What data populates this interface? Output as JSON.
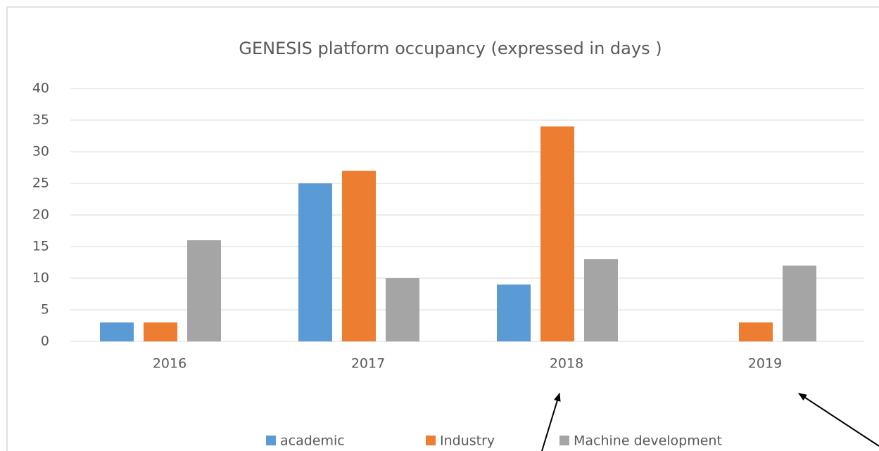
{
  "chart_data": {
    "type": "bar",
    "title": "GENESIS platform occupancy (expressed in days )",
    "categories": [
      "2016",
      "2017",
      "2018",
      "2019"
    ],
    "series": [
      {
        "name": "academic",
        "color": "#5b9bd5",
        "values": [
          3,
          25,
          9,
          0
        ]
      },
      {
        "name": "Industry",
        "color": "#ed7d31",
        "values": [
          3,
          27,
          34,
          3
        ]
      },
      {
        "name": "Machine development",
        "color": "#a5a5a5",
        "values": [
          16,
          10,
          13,
          12
        ]
      }
    ],
    "ylim": [
      0,
      40
    ],
    "yticks": [
      0,
      5,
      10,
      15,
      20,
      25,
      30,
      35,
      40
    ],
    "grid": true,
    "legend": "bottom"
  }
}
